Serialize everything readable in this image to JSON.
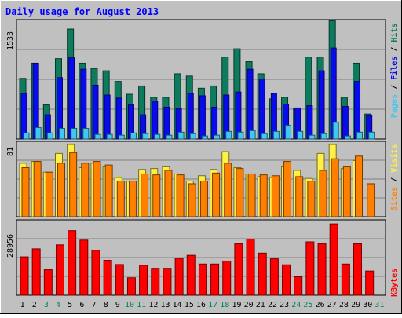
{
  "chart_data": [
    {
      "type": "bar",
      "title": "Daily usage for August 2013",
      "x": [
        "1",
        "2",
        "3",
        "4",
        "5",
        "6",
        "7",
        "8",
        "9",
        "10",
        "11",
        "12",
        "13",
        "14",
        "15",
        "16",
        "17",
        "18",
        "19",
        "20",
        "21",
        "22",
        "23",
        "24",
        "25",
        "26",
        "27",
        "28",
        "29",
        "30",
        "31"
      ],
      "weekend_days": [
        "3",
        "4",
        "10",
        "11",
        "17",
        "18",
        "24",
        "25",
        "31"
      ],
      "y_max_label": "1533",
      "ylim": [
        0,
        1533
      ],
      "grid": true,
      "right_label": [
        "Pages",
        " / ",
        "Files",
        " / ",
        "Hits"
      ],
      "series": [
        {
          "name": "Hits",
          "color": "#0f7b5e",
          "values": [
            800,
            1000,
            450,
            1060,
            1450,
            1000,
            930,
            900,
            760,
            590,
            700,
            550,
            550,
            860,
            830,
            670,
            700,
            1080,
            1190,
            1020,
            860,
            530,
            550,
            400,
            1080,
            1080,
            1560,
            550,
            1000,
            330,
            0
          ]
        },
        {
          "name": "Files",
          "color": "#0a0aee",
          "values": [
            600,
            1000,
            320,
            810,
            1070,
            920,
            710,
            580,
            540,
            450,
            320,
            500,
            420,
            400,
            600,
            570,
            420,
            580,
            620,
            920,
            790,
            600,
            460,
            410,
            440,
            900,
            1200,
            430,
            760,
            310,
            0
          ]
        },
        {
          "name": "Pages",
          "color": "#3ec8f2",
          "values": [
            80,
            150,
            80,
            140,
            140,
            140,
            60,
            60,
            50,
            80,
            70,
            60,
            50,
            90,
            70,
            40,
            50,
            100,
            90,
            110,
            70,
            100,
            180,
            100,
            50,
            70,
            220,
            40,
            90,
            90,
            0
          ]
        }
      ]
    },
    {
      "type": "bar",
      "y_max_label": "81",
      "ylim": [
        0,
        81
      ],
      "grid": true,
      "right_label": [
        "Sites",
        " / ",
        "Visits"
      ],
      "series": [
        {
          "name": "Visits",
          "color": "#fff048",
          "values": [
            60,
            62,
            50,
            71,
            81,
            55,
            60,
            56,
            44,
            40,
            53,
            54,
            56,
            48,
            40,
            46,
            53,
            73,
            55,
            48,
            45,
            44,
            56,
            52,
            43,
            71,
            81,
            54,
            63,
            0,
            0
          ]
        },
        {
          "name": "Sites",
          "color": "#ff8000",
          "values": [
            55,
            62,
            50,
            60,
            72,
            60,
            62,
            58,
            40,
            40,
            48,
            47,
            52,
            47,
            37,
            40,
            49,
            60,
            54,
            48,
            47,
            46,
            62,
            45,
            40,
            52,
            65,
            56,
            68,
            37,
            0
          ]
        }
      ]
    },
    {
      "type": "bar",
      "y_max_label": "28956",
      "ylim": [
        0,
        28956
      ],
      "grid": true,
      "right_label": [
        "KBytes"
      ],
      "series": [
        {
          "name": "KBytes",
          "color": "#ff0000",
          "values": [
            15400,
            18600,
            10200,
            20200,
            25900,
            22100,
            18000,
            14000,
            12300,
            7000,
            12000,
            10800,
            10800,
            14800,
            16000,
            12500,
            12500,
            13700,
            20600,
            22500,
            16900,
            14600,
            12200,
            7400,
            21400,
            20600,
            28600,
            12500,
            20600,
            9700,
            0
          ]
        }
      ]
    }
  ]
}
